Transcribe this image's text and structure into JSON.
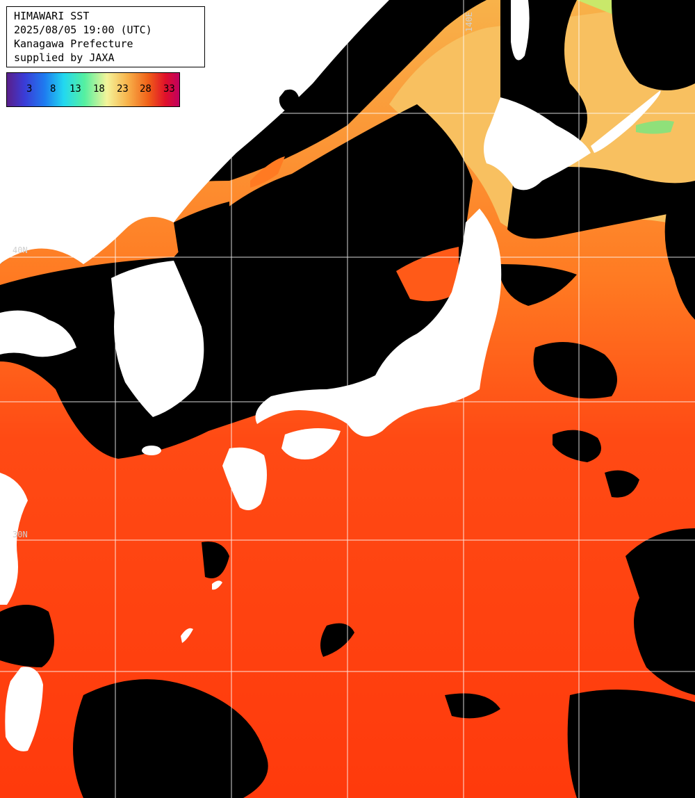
{
  "title": {
    "line1": "HIMAWARI SST",
    "line2": "2025/08/05 19:00 (UTC)",
    "line3": "Kanagawa Prefecture",
    "line4": "supplied by JAXA"
  },
  "legend": {
    "ticks": [
      "3",
      "8",
      "13",
      "18",
      "23",
      "28",
      "33"
    ]
  },
  "grid_labels": {
    "lon_140": "140E",
    "lat_40": "40N",
    "lat_30": "30N"
  },
  "colors": {
    "warm_sea": "#ff3c0a",
    "mid_sea": "#ff8a2a",
    "cool_sea": "#f8c060",
    "land": "#ffffff",
    "cloud": "#000000",
    "grid": "#ffffff"
  }
}
